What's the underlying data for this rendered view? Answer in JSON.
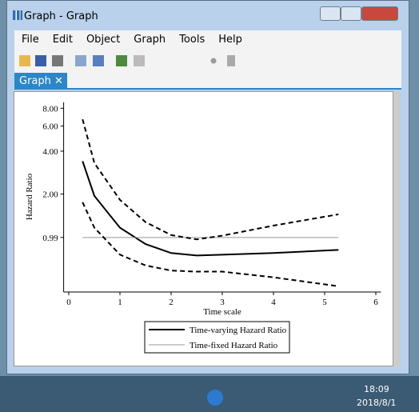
{
  "window": {
    "title": "Graph - Graph",
    "menus": [
      "File",
      "Edit",
      "Object",
      "Graph",
      "Tools",
      "Help"
    ],
    "tab": "Graph"
  },
  "taskbar": {
    "time": "18:09",
    "date": "2018/8/1"
  },
  "chart_data": {
    "type": "line",
    "x_label": "Time scale",
    "y_label": "Hazard Ratio",
    "x": [
      0.27,
      0.5,
      1,
      1.5,
      2,
      2.5,
      3,
      4,
      5.27
    ],
    "series": [
      {
        "name": "Time-varying Hazard Ratio",
        "color": "#000000",
        "values": [
          3.4,
          1.94,
          1.16,
          0.89,
          0.77,
          0.74,
          0.75,
          0.77,
          0.81
        ]
      },
      {
        "name": "Time-fixed Hazard Ratio",
        "color": "#999999",
        "values": [
          0.99,
          0.99,
          0.99,
          0.99,
          0.99,
          0.99,
          0.99,
          0.99,
          0.99
        ]
      },
      {
        "color": "#000000",
        "dash": true,
        "values": [
          6.7,
          3.3,
          1.82,
          1.27,
          1.03,
          0.96,
          1.02,
          1.2,
          1.44
        ]
      },
      {
        "color": "#000000",
        "dash": true,
        "values": [
          1.75,
          1.16,
          0.75,
          0.63,
          0.58,
          0.57,
          0.57,
          0.52,
          0.45
        ]
      }
    ],
    "xlim": [
      -0.1,
      6.1
    ],
    "xticks": [
      0,
      1,
      2,
      3,
      4,
      5,
      6
    ],
    "ylim": [
      0.41,
      8.8
    ],
    "ylog": true,
    "yticks": [
      {
        "value": 0.99,
        "label": "0.99"
      },
      {
        "value": 2,
        "label": "2.00"
      },
      {
        "value": 4,
        "label": "4.00"
      },
      {
        "value": 6,
        "label": "6.00"
      },
      {
        "value": 8,
        "label": "8.00"
      }
    ],
    "grid": false
  }
}
